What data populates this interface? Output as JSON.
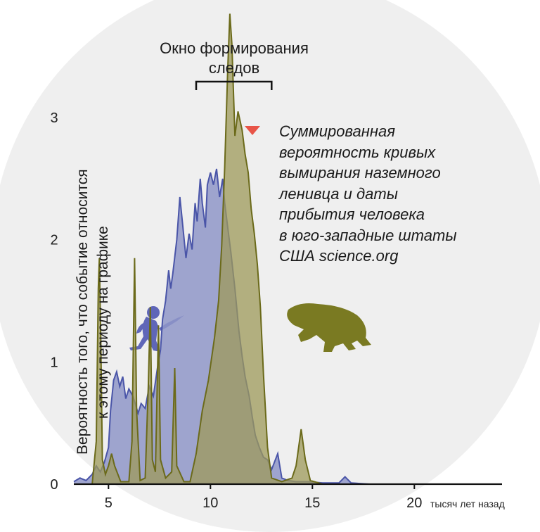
{
  "chart_data": {
    "type": "area",
    "title": "",
    "xlabel": "тысяч лет назад",
    "ylabel_lines": [
      "Вероятность того, что событие относится",
      "к этому периоду на графике"
    ],
    "xlim": [
      3.3,
      24.3
    ],
    "ylim": [
      0,
      3.3
    ],
    "x_ticks": [
      5,
      10,
      15,
      20
    ],
    "x_tick_labels": [
      "5",
      "10",
      "15",
      "20"
    ],
    "y_ticks": [
      0,
      1,
      2,
      3
    ],
    "y_tick_labels": [
      "0",
      "1",
      "2",
      "3"
    ],
    "grid": false,
    "annotation": {
      "label_lines": [
        "Окно формирования",
        "следов"
      ],
      "range": [
        9.3,
        13.0
      ]
    },
    "legend_text_lines": [
      "Суммированная",
      "вероятность кривых",
      "вымирания наземного",
      "ленивца и даты",
      "прибытия человека",
      "в юго-западные штаты",
      "США science.org"
    ],
    "legend_marker_color": "#e85548",
    "series": [
      {
        "color": "#8f97c8",
        "stroke": "#4a55a8",
        "points": [
          [
            3.3,
            0.02
          ],
          [
            3.6,
            0.05
          ],
          [
            3.9,
            0.03
          ],
          [
            4.2,
            0.08
          ],
          [
            4.4,
            0.15
          ],
          [
            4.6,
            0.1
          ],
          [
            4.8,
            0.18
          ],
          [
            5.0,
            0.3
          ],
          [
            5.1,
            0.6
          ],
          [
            5.25,
            0.85
          ],
          [
            5.4,
            0.92
          ],
          [
            5.55,
            0.8
          ],
          [
            5.7,
            0.88
          ],
          [
            5.85,
            0.7
          ],
          [
            6.0,
            0.78
          ],
          [
            6.2,
            0.72
          ],
          [
            6.45,
            0.58
          ],
          [
            6.6,
            0.66
          ],
          [
            6.8,
            0.62
          ],
          [
            7.0,
            0.8
          ],
          [
            7.2,
            0.72
          ],
          [
            7.4,
            0.95
          ],
          [
            7.55,
            1.1
          ],
          [
            7.65,
            1.35
          ],
          [
            7.8,
            1.5
          ],
          [
            7.95,
            1.75
          ],
          [
            8.05,
            1.6
          ],
          [
            8.15,
            1.72
          ],
          [
            8.35,
            2.0
          ],
          [
            8.5,
            2.35
          ],
          [
            8.65,
            2.1
          ],
          [
            8.8,
            1.85
          ],
          [
            8.95,
            2.05
          ],
          [
            9.1,
            1.92
          ],
          [
            9.25,
            2.3
          ],
          [
            9.35,
            2.15
          ],
          [
            9.5,
            2.5
          ],
          [
            9.6,
            2.3
          ],
          [
            9.75,
            2.1
          ],
          [
            9.85,
            2.45
          ],
          [
            10.0,
            2.55
          ],
          [
            10.15,
            2.45
          ],
          [
            10.3,
            2.58
          ],
          [
            10.45,
            2.35
          ],
          [
            10.6,
            2.5
          ],
          [
            10.7,
            2.3
          ],
          [
            10.85,
            2.1
          ],
          [
            11.0,
            1.9
          ],
          [
            11.2,
            1.6
          ],
          [
            11.4,
            1.25
          ],
          [
            11.55,
            1.05
          ],
          [
            11.7,
            0.88
          ],
          [
            11.9,
            0.72
          ],
          [
            12.05,
            0.55
          ],
          [
            12.2,
            0.4
          ],
          [
            12.4,
            0.3
          ],
          [
            12.6,
            0.22
          ],
          [
            12.8,
            0.2
          ],
          [
            13.0,
            0.12
          ],
          [
            13.3,
            0.25
          ],
          [
            13.5,
            0.05
          ],
          [
            13.8,
            0.03
          ],
          [
            14.2,
            0.02
          ],
          [
            14.8,
            0.02
          ],
          [
            15.5,
            0.01
          ],
          [
            16.3,
            0.01
          ],
          [
            16.6,
            0.06
          ],
          [
            16.9,
            0.01
          ],
          [
            17.8,
            0.0
          ],
          [
            24.3,
            0.0
          ]
        ]
      },
      {
        "color": "#9e9a5a",
        "stroke": "#6b6a1a",
        "points": [
          [
            3.3,
            0.0
          ],
          [
            4.2,
            0.0
          ],
          [
            4.4,
            0.35
          ],
          [
            4.5,
            1.6
          ],
          [
            4.55,
            1.85
          ],
          [
            4.62,
            1.2
          ],
          [
            4.7,
            0.2
          ],
          [
            4.85,
            0.08
          ],
          [
            5.0,
            0.15
          ],
          [
            5.15,
            0.25
          ],
          [
            5.3,
            0.15
          ],
          [
            5.6,
            0.02
          ],
          [
            6.0,
            0.02
          ],
          [
            6.15,
            0.35
          ],
          [
            6.28,
            1.85
          ],
          [
            6.38,
            0.6
          ],
          [
            6.55,
            0.03
          ],
          [
            6.8,
            0.05
          ],
          [
            6.95,
            0.8
          ],
          [
            7.05,
            1.45
          ],
          [
            7.15,
            0.2
          ],
          [
            7.3,
            0.1
          ],
          [
            7.45,
            1.3
          ],
          [
            7.55,
            0.2
          ],
          [
            7.8,
            0.05
          ],
          [
            8.1,
            0.1
          ],
          [
            8.25,
            0.95
          ],
          [
            8.35,
            0.15
          ],
          [
            8.7,
            0.02
          ],
          [
            9.0,
            0.02
          ],
          [
            9.3,
            0.25
          ],
          [
            9.6,
            0.6
          ],
          [
            9.9,
            0.85
          ],
          [
            10.2,
            1.2
          ],
          [
            10.4,
            1.5
          ],
          [
            10.55,
            1.95
          ],
          [
            10.7,
            2.6
          ],
          [
            10.85,
            3.4
          ],
          [
            10.95,
            3.85
          ],
          [
            11.05,
            3.6
          ],
          [
            11.2,
            2.85
          ],
          [
            11.35,
            3.05
          ],
          [
            11.55,
            2.9
          ],
          [
            11.7,
            2.7
          ],
          [
            11.85,
            2.55
          ],
          [
            12.0,
            2.25
          ],
          [
            12.15,
            2.05
          ],
          [
            12.3,
            1.8
          ],
          [
            12.45,
            1.45
          ],
          [
            12.6,
            0.9
          ],
          [
            12.8,
            0.3
          ],
          [
            13.0,
            0.05
          ],
          [
            13.5,
            0.02
          ],
          [
            14.0,
            0.05
          ],
          [
            14.2,
            0.15
          ],
          [
            14.45,
            0.45
          ],
          [
            14.65,
            0.2
          ],
          [
            14.9,
            0.03
          ],
          [
            15.5,
            0.0
          ],
          [
            24.3,
            0.0
          ]
        ]
      }
    ]
  }
}
